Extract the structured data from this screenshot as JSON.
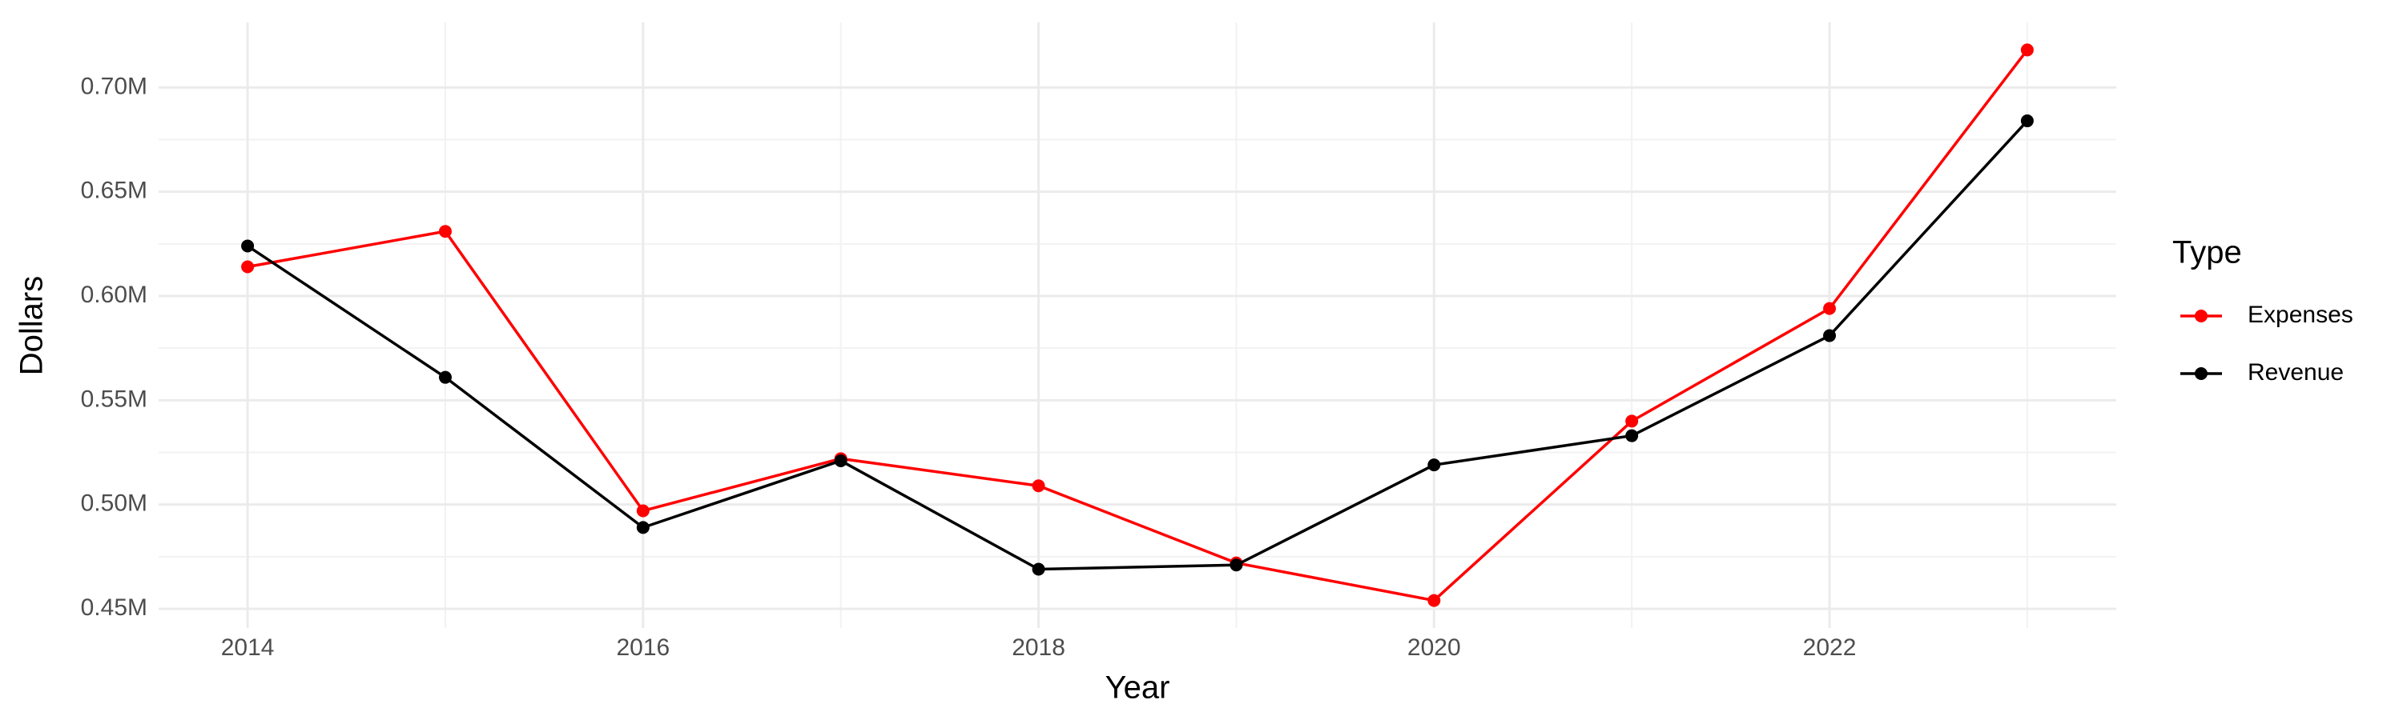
{
  "chart_data": {
    "type": "line",
    "x_label": "Year",
    "y_label": "Dollars",
    "legend_title": "Type",
    "legend_position": "right",
    "grid": true,
    "x": [
      2014,
      2015,
      2016,
      2017,
      2018,
      2019,
      2020,
      2021,
      2022,
      2023
    ],
    "series": [
      {
        "name": "Expenses",
        "color": "#ff0000",
        "values": [
          614000,
          631000,
          497000,
          522000,
          509000,
          472000,
          454000,
          540000,
          594000,
          718000
        ]
      },
      {
        "name": "Revenue",
        "color": "#000000",
        "values": [
          624000,
          561000,
          489000,
          521000,
          469000,
          471000,
          519000,
          533000,
          581000,
          684000
        ]
      }
    ],
    "xlim": [
      2013.55,
      2023.45
    ],
    "xticks": [
      2014,
      2016,
      2018,
      2020,
      2022
    ],
    "ylim": [
      440800,
      731200
    ],
    "yticks": [
      {
        "value": 450000,
        "label": "0.45M"
      },
      {
        "value": 500000,
        "label": "0.50M"
      },
      {
        "value": 550000,
        "label": "0.55M"
      },
      {
        "value": 600000,
        "label": "0.60M"
      },
      {
        "value": 650000,
        "label": "0.65M"
      },
      {
        "value": 700000,
        "label": "0.70M"
      }
    ]
  }
}
